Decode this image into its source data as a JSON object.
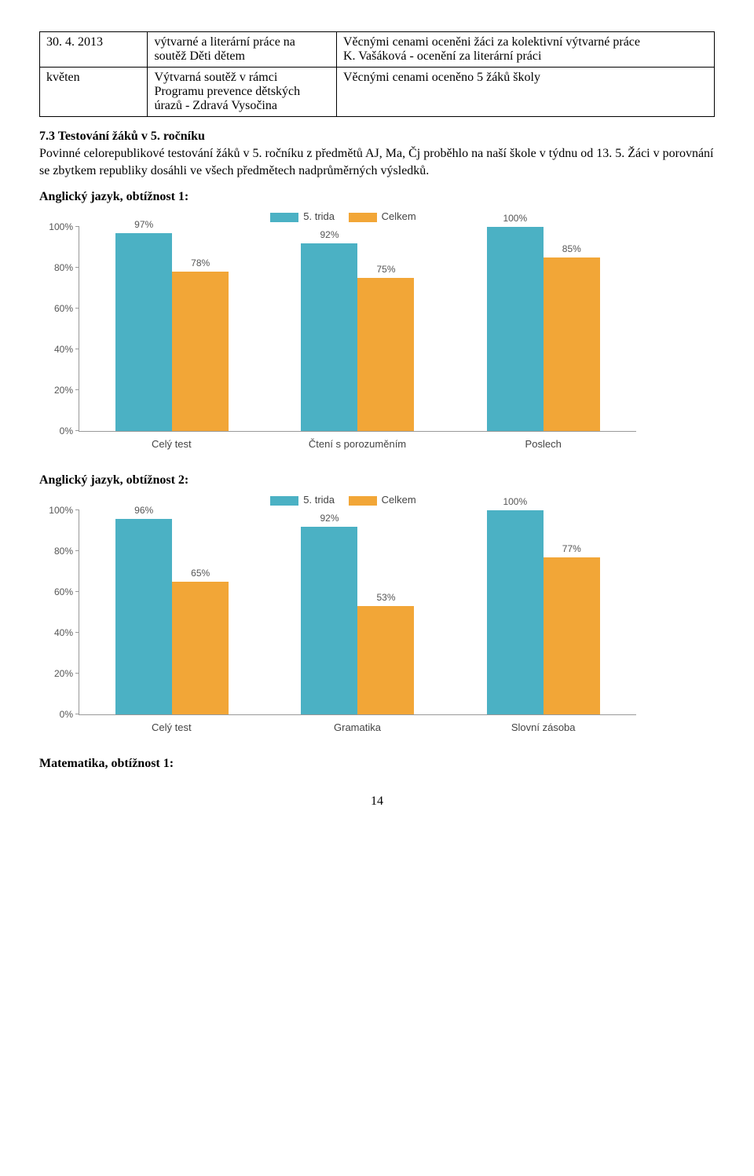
{
  "table": {
    "rows": [
      {
        "c1": "30. 4. 2013",
        "c2": "výtvarné a literární práce na soutěž Děti dětem",
        "c3": "Věcnými cenami oceněni žáci za kolektivní výtvarné práce\nK. Vašáková - ocenění za literární práci"
      },
      {
        "c1": "květen",
        "c2": "Výtvarná soutěž v rámci Programu prevence dětských úrazů - Zdravá Vysočina",
        "c3": "Věcnými cenami oceněno 5 žáků školy"
      }
    ]
  },
  "section": {
    "heading": "7.3 Testování žáků v 5. ročníku",
    "body": "Povinné celorepublikové testování žáků v 5. ročníku z předmětů AJ, Ma, Čj proběhlo na naší škole v týdnu od 13. 5. Žáci v porovnání se zbytkem republiky dosáhli ve všech předmětech nadprůměrných výsledků."
  },
  "charts": {
    "colors": {
      "series1": "#4bb1c4",
      "series2": "#f2a637"
    },
    "legend": {
      "s1": "5. trida",
      "s2": "Celkem"
    },
    "yticks": [
      0,
      20,
      40,
      60,
      80,
      100
    ],
    "chart1": {
      "title": "Anglický jazyk, obtížnost 1:",
      "categories": [
        "Celý test",
        "Čtení s porozuměním",
        "Poslech"
      ],
      "series1": [
        97,
        92,
        100
      ],
      "series2": [
        78,
        75,
        85
      ]
    },
    "chart2": {
      "title": "Anglický jazyk, obtížnost 2:",
      "categories": [
        "Celý test",
        "Gramatika",
        "Slovní zásoba"
      ],
      "series1": [
        96,
        92,
        100
      ],
      "series2": [
        65,
        53,
        77
      ]
    }
  },
  "footer": {
    "heading3": "Matematika, obtížnost 1:",
    "pagenum": "14"
  }
}
